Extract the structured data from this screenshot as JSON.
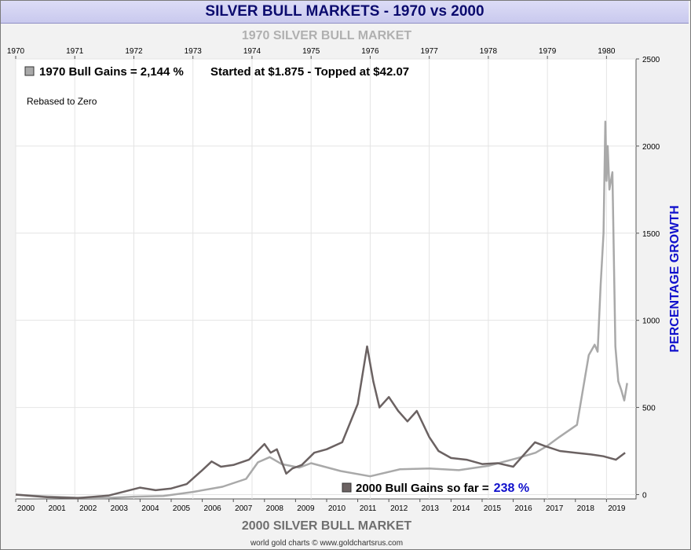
{
  "title": "SILVER BULL MARKETS - 1970 vs 2000",
  "footer": "world gold charts © www.goldchartsrus.com",
  "colors": {
    "series1970": "#a9a9a9",
    "series2000": "#6b6262",
    "title": "#0b0b6e",
    "axis_title": "#1010cc",
    "value_blue": "#1010cc"
  },
  "chart_data": {
    "type": "line",
    "title": "1970 SILVER BULL MARKET",
    "xlabel": "2000 SILVER BULL MARKET",
    "ylabel": "PERCENTAGE GROWTH",
    "ylim": [
      -25,
      2500
    ],
    "yticks": [
      0,
      500,
      1000,
      1500,
      2000,
      2500
    ],
    "top_axis": {
      "labels": [
        "1970",
        "1971",
        "1972",
        "1973",
        "1974",
        "1975",
        "1976",
        "1977",
        "1978",
        "1979",
        "1980"
      ],
      "range": [
        1970,
        1980.5
      ]
    },
    "bottom_axis": {
      "labels": [
        "2000",
        "2001",
        "2002",
        "2003",
        "2004",
        "2005",
        "2006",
        "2007",
        "2008",
        "2009",
        "2010",
        "2011",
        "2012",
        "2013",
        "2014",
        "2015",
        "2016",
        "2017",
        "2018",
        "2019"
      ],
      "range": [
        2000,
        2019.95
      ]
    },
    "grid": true,
    "annotations": {
      "legend_1970": "1970 Bull Gains = 2,144 %",
      "started_topped": "Started at $1.875 - Topped at $42.07",
      "rebased": "Rebased to Zero",
      "legend_2000": "2000 Bull Gains so far =",
      "gain_2000": "238 %"
    },
    "series": [
      {
        "key": "s1970",
        "x": [
          1970.0,
          1970.5,
          1971.0,
          1971.5,
          1972.0,
          1972.5,
          1973.0,
          1973.5,
          1973.9,
          1974.1,
          1974.3,
          1974.5,
          1974.8,
          1975.0,
          1975.5,
          1976.0,
          1976.5,
          1977.0,
          1977.5,
          1978.0,
          1978.5,
          1978.8,
          1979.0,
          1979.2,
          1979.5,
          1979.7,
          1979.8,
          1979.85,
          1979.9,
          1979.95,
          1979.98,
          1980.0,
          1980.02,
          1980.05,
          1980.1,
          1980.15,
          1980.2,
          1980.25,
          1980.3,
          1980.35
        ],
        "y": [
          0,
          -10,
          -18,
          -20,
          -12,
          -8,
          15,
          45,
          90,
          185,
          215,
          175,
          155,
          180,
          135,
          105,
          145,
          150,
          140,
          165,
          210,
          240,
          280,
          330,
          400,
          800,
          860,
          820,
          1200,
          1500,
          2140,
          1800,
          2000,
          1750,
          1850,
          850,
          650,
          600,
          540,
          640
        ]
      },
      {
        "key": "s2000",
        "x": [
          2000.0,
          2001.0,
          2002.0,
          2003.0,
          2004.0,
          2004.5,
          2005.0,
          2005.5,
          2006.0,
          2006.3,
          2006.6,
          2007.0,
          2007.5,
          2008.0,
          2008.2,
          2008.4,
          2008.7,
          2008.9,
          2009.2,
          2009.6,
          2010.0,
          2010.5,
          2011.0,
          2011.3,
          2011.5,
          2011.7,
          2012.0,
          2012.3,
          2012.6,
          2012.9,
          2013.3,
          2013.6,
          2014.0,
          2014.5,
          2015.0,
          2015.5,
          2016.0,
          2016.4,
          2016.7,
          2017.0,
          2017.5,
          2018.0,
          2018.5,
          2018.9,
          2019.3,
          2019.6
        ],
        "y": [
          0,
          -15,
          -20,
          -5,
          40,
          25,
          35,
          60,
          140,
          190,
          160,
          170,
          200,
          290,
          240,
          260,
          120,
          150,
          170,
          240,
          260,
          300,
          520,
          850,
          650,
          500,
          560,
          480,
          420,
          480,
          330,
          250,
          210,
          200,
          175,
          180,
          160,
          240,
          300,
          280,
          250,
          240,
          230,
          220,
          200,
          240
        ]
      }
    ]
  }
}
